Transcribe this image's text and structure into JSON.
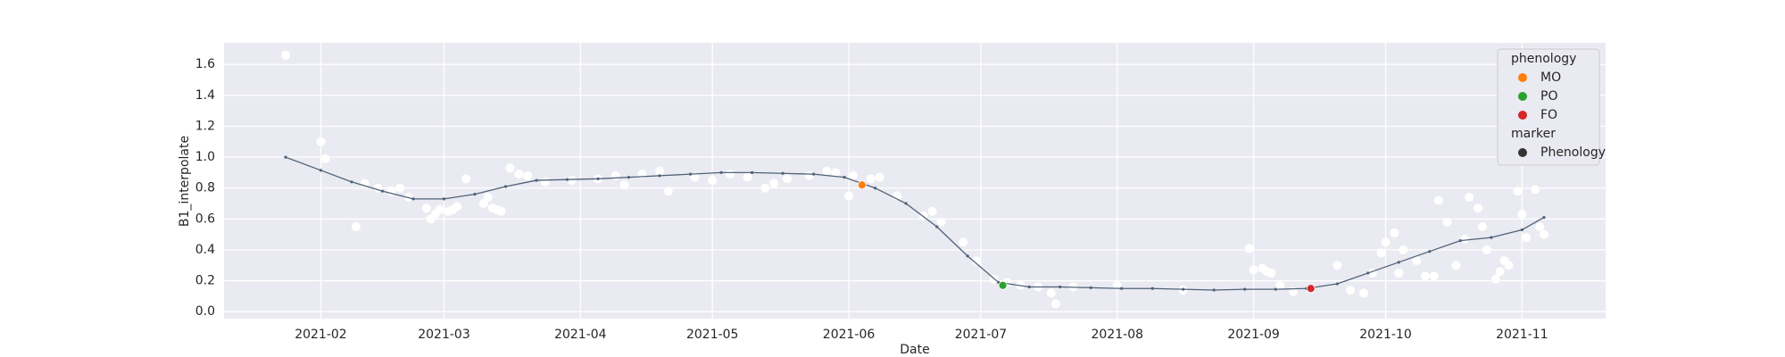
{
  "chart_data": {
    "type": "scatter",
    "x_label": "Date",
    "y_label": "B1_interpolate",
    "xlim": [
      18637,
      18951
    ],
    "ylim": [
      -0.045,
      1.74
    ],
    "xticks": [
      {
        "value": 18659,
        "label": "2021-02"
      },
      {
        "value": 18687,
        "label": "2021-03"
      },
      {
        "value": 18718,
        "label": "2021-04"
      },
      {
        "value": 18748,
        "label": "2021-05"
      },
      {
        "value": 18779,
        "label": "2021-06"
      },
      {
        "value": 18809,
        "label": "2021-07"
      },
      {
        "value": 18840,
        "label": "2021-08"
      },
      {
        "value": 18871,
        "label": "2021-09"
      },
      {
        "value": 18901,
        "label": "2021-10"
      },
      {
        "value": 18932,
        "label": "2021-11"
      }
    ],
    "yticks": [
      {
        "value": 0,
        "label": "0.0"
      },
      0.2,
      0.4,
      0.6,
      0.8,
      {
        "value": 1,
        "label": "1.0"
      },
      1.2,
      1.4,
      1.6
    ],
    "grid": true,
    "legend_loc": "upper right",
    "raw": {
      "color": "#ffffff",
      "x": [
        18651,
        18659,
        18660,
        18667,
        18669,
        18672,
        18675,
        18677,
        18679,
        18683,
        18684,
        18685,
        18686,
        18688,
        18689,
        18690,
        18692,
        18696,
        18697,
        18698,
        18699,
        18700,
        18702,
        18704,
        18706,
        18710,
        18716,
        18722,
        18726,
        18728,
        18732,
        18736,
        18738,
        18744,
        18748,
        18752,
        18756,
        18760,
        18762,
        18765,
        18770,
        18774,
        18776,
        18779,
        18780,
        18784,
        18786,
        18790,
        18796,
        18798,
        18800,
        18805,
        18808,
        18812,
        18815,
        18818,
        18822,
        18825,
        18826,
        18830,
        18840,
        18855,
        18870,
        18871,
        18873,
        18874,
        18875,
        18877,
        18880,
        18890,
        18893,
        18896,
        18898,
        18900,
        18901,
        18903,
        18904,
        18905,
        18908,
        18910,
        18912,
        18913,
        18915,
        18917,
        18919,
        18920,
        18922,
        18923,
        18924,
        18926,
        18927,
        18928,
        18929,
        18931,
        18932,
        18933,
        18935,
        18936,
        18937
      ],
      "values": [
        1.66,
        1.1,
        0.99,
        0.55,
        0.83,
        0.8,
        0.78,
        0.8,
        0.74,
        0.67,
        0.6,
        0.63,
        0.66,
        0.65,
        0.66,
        0.68,
        0.86,
        0.7,
        0.74,
        0.67,
        0.66,
        0.65,
        0.93,
        0.89,
        0.88,
        0.84,
        0.85,
        0.86,
        0.88,
        0.82,
        0.89,
        0.91,
        0.78,
        0.87,
        0.85,
        0.89,
        0.87,
        0.8,
        0.83,
        0.86,
        0.88,
        0.91,
        0.9,
        0.75,
        0.88,
        0.86,
        0.87,
        0.75,
        0.62,
        0.65,
        0.58,
        0.45,
        0.33,
        0.21,
        0.19,
        0.17,
        0.16,
        0.12,
        0.05,
        0.16,
        0.17,
        0.14,
        0.41,
        0.27,
        0.28,
        0.26,
        0.25,
        0.17,
        0.13,
        0.3,
        0.14,
        0.12,
        0.25,
        0.38,
        0.45,
        0.51,
        0.25,
        0.4,
        0.33,
        0.23,
        0.23,
        0.72,
        0.58,
        0.3,
        0.47,
        0.74,
        0.67,
        0.55,
        0.4,
        0.21,
        0.26,
        0.33,
        0.3,
        0.78,
        0.63,
        0.48,
        0.79,
        0.55,
        0.5
      ]
    },
    "line": {
      "color": "#4f6278",
      "x": [
        18651,
        18659,
        18666,
        18673,
        18680,
        18687,
        18694,
        18701,
        18708,
        18715,
        18722,
        18729,
        18736,
        18743,
        18750,
        18757,
        18764,
        18771,
        18778,
        18785,
        18792,
        18799,
        18806,
        18813,
        18820,
        18827,
        18834,
        18841,
        18848,
        18855,
        18862,
        18869,
        18876,
        18883,
        18890,
        18897,
        18904,
        18911,
        18918,
        18925,
        18932,
        18937
      ],
      "values": [
        1.0,
        0.915,
        0.84,
        0.78,
        0.73,
        0.73,
        0.76,
        0.81,
        0.85,
        0.855,
        0.86,
        0.87,
        0.88,
        0.89,
        0.9,
        0.9,
        0.895,
        0.89,
        0.87,
        0.8,
        0.7,
        0.55,
        0.36,
        0.19,
        0.16,
        0.16,
        0.155,
        0.15,
        0.15,
        0.145,
        0.14,
        0.145,
        0.145,
        0.15,
        0.18,
        0.25,
        0.32,
        0.39,
        0.46,
        0.48,
        0.53,
        0.61
      ]
    },
    "legend_title": "phenology",
    "series": [
      {
        "name": "MO",
        "color": "#ff7f0e",
        "x": [
          18782
        ],
        "values": [
          0.82
        ]
      },
      {
        "name": "PO",
        "color": "#2ca02c",
        "x": [
          18814
        ],
        "values": [
          0.17
        ]
      },
      {
        "name": "FO",
        "color": "#d62728",
        "x": [
          18884
        ],
        "values": [
          0.15
        ]
      }
    ],
    "marker_title": "marker",
    "marker_legend": {
      "name": "Phenology",
      "color": "#333333"
    }
  }
}
